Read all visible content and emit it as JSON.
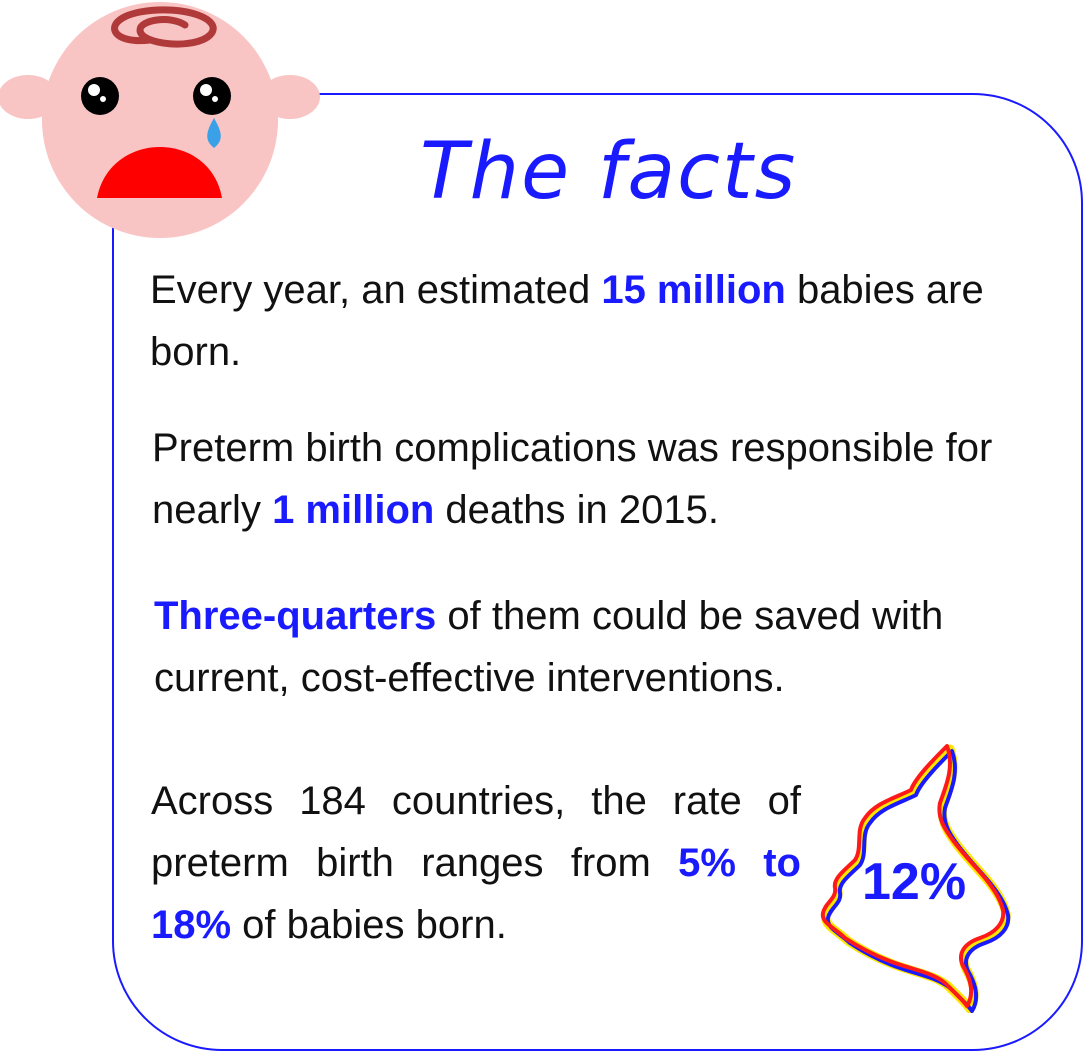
{
  "title": "The facts",
  "facts": [
    {
      "pre": "Every year, an estimated ",
      "highlight": "15 million",
      "post": " babies are born."
    },
    {
      "pre": "Preterm birth complications was responsible for nearly ",
      "highlight": "1 million",
      "post": " deaths in 2015."
    },
    {
      "pre": "",
      "highlight": "Three-quarters",
      "post": " of them could be saved with current, cost-effective interventions."
    },
    {
      "pre": "Across 184 countries, the rate of preterm birth ranges from ",
      "highlight": "5% to 18%",
      "post": " of babies born."
    }
  ],
  "map_stat": "12%",
  "colors": {
    "accent": "#1a1aff",
    "text": "#111111",
    "face": "#f9c4c4",
    "mouth": "#ff0000",
    "curl": "#b03a3a",
    "tear": "#3aa0e8",
    "map_red": "#ff1a1a",
    "map_yellow": "#ffe600",
    "map_blue": "#1a1aff"
  },
  "icons": {
    "baby": "crying-baby-icon",
    "map": "country-map-icon"
  }
}
